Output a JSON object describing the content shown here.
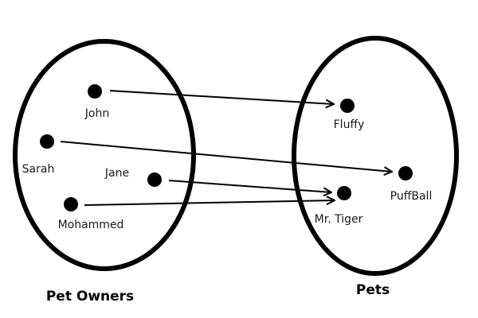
{
  "sets": [
    {
      "id": "owners",
      "title": "Pet Owners"
    },
    {
      "id": "pets",
      "title": "Pets"
    }
  ],
  "owners": [
    {
      "id": "john",
      "name": "John"
    },
    {
      "id": "sarah",
      "name": "Sarah"
    },
    {
      "id": "jane",
      "name": "Jane"
    },
    {
      "id": "mohammed",
      "name": "Mohammed"
    }
  ],
  "pets": [
    {
      "id": "fluffy",
      "name": "Fluffy"
    },
    {
      "id": "puffball",
      "name": "PuffBall"
    },
    {
      "id": "mrtiger",
      "name": "Mr. Tiger"
    }
  ],
  "mappings": [
    {
      "from": "john",
      "to": "fluffy"
    },
    {
      "from": "sarah",
      "to": "puffball"
    },
    {
      "from": "jane",
      "to": "mrtiger"
    },
    {
      "from": "mohammed",
      "to": "mrtiger"
    }
  ],
  "colors": {
    "stroke": "#000000",
    "node": "#000000",
    "text": "#1a1a1a",
    "background": "#ffffff"
  }
}
